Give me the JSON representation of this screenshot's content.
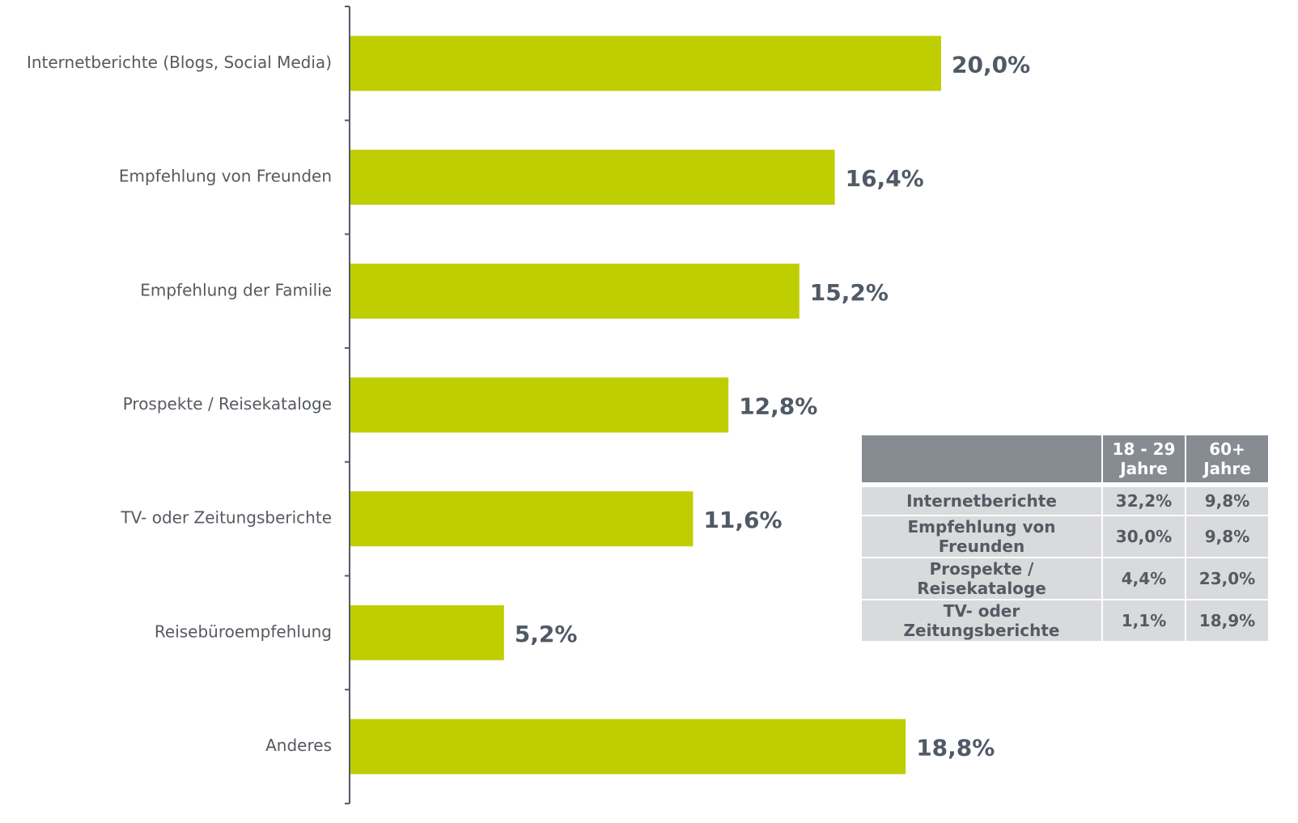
{
  "chart_data": {
    "type": "bar",
    "orientation": "horizontal",
    "categories": [
      "Internetberichte (Blogs, Social Media)",
      "Empfehlung von Freunden",
      "Empfehlung der Familie",
      "Prospekte / Reisekataloge",
      "TV- oder Zeitungsberichte",
      "Reisebüroempfehlung",
      "Anderes"
    ],
    "values": [
      20.0,
      16.4,
      15.2,
      12.8,
      11.6,
      5.2,
      18.8
    ],
    "value_labels": [
      "20,0%",
      "16,4%",
      "15,2%",
      "12,8%",
      "11,6%",
      "5,2%",
      "18,8%"
    ],
    "color": "#bfce00"
  },
  "table": {
    "header": [
      "18 - 29 Jahre",
      "60+ Jahre"
    ],
    "rows": [
      [
        "Internetberichte",
        "32,2%",
        "9,8%"
      ],
      [
        "Empfehlung von Freunden",
        "30,0%",
        "9,8%"
      ],
      [
        "Prospekte / Reisekataloge",
        "4,4%",
        "23,0%"
      ],
      [
        "TV- oder Zeitungsberichte",
        "1,1%",
        "18,9%"
      ]
    ]
  }
}
